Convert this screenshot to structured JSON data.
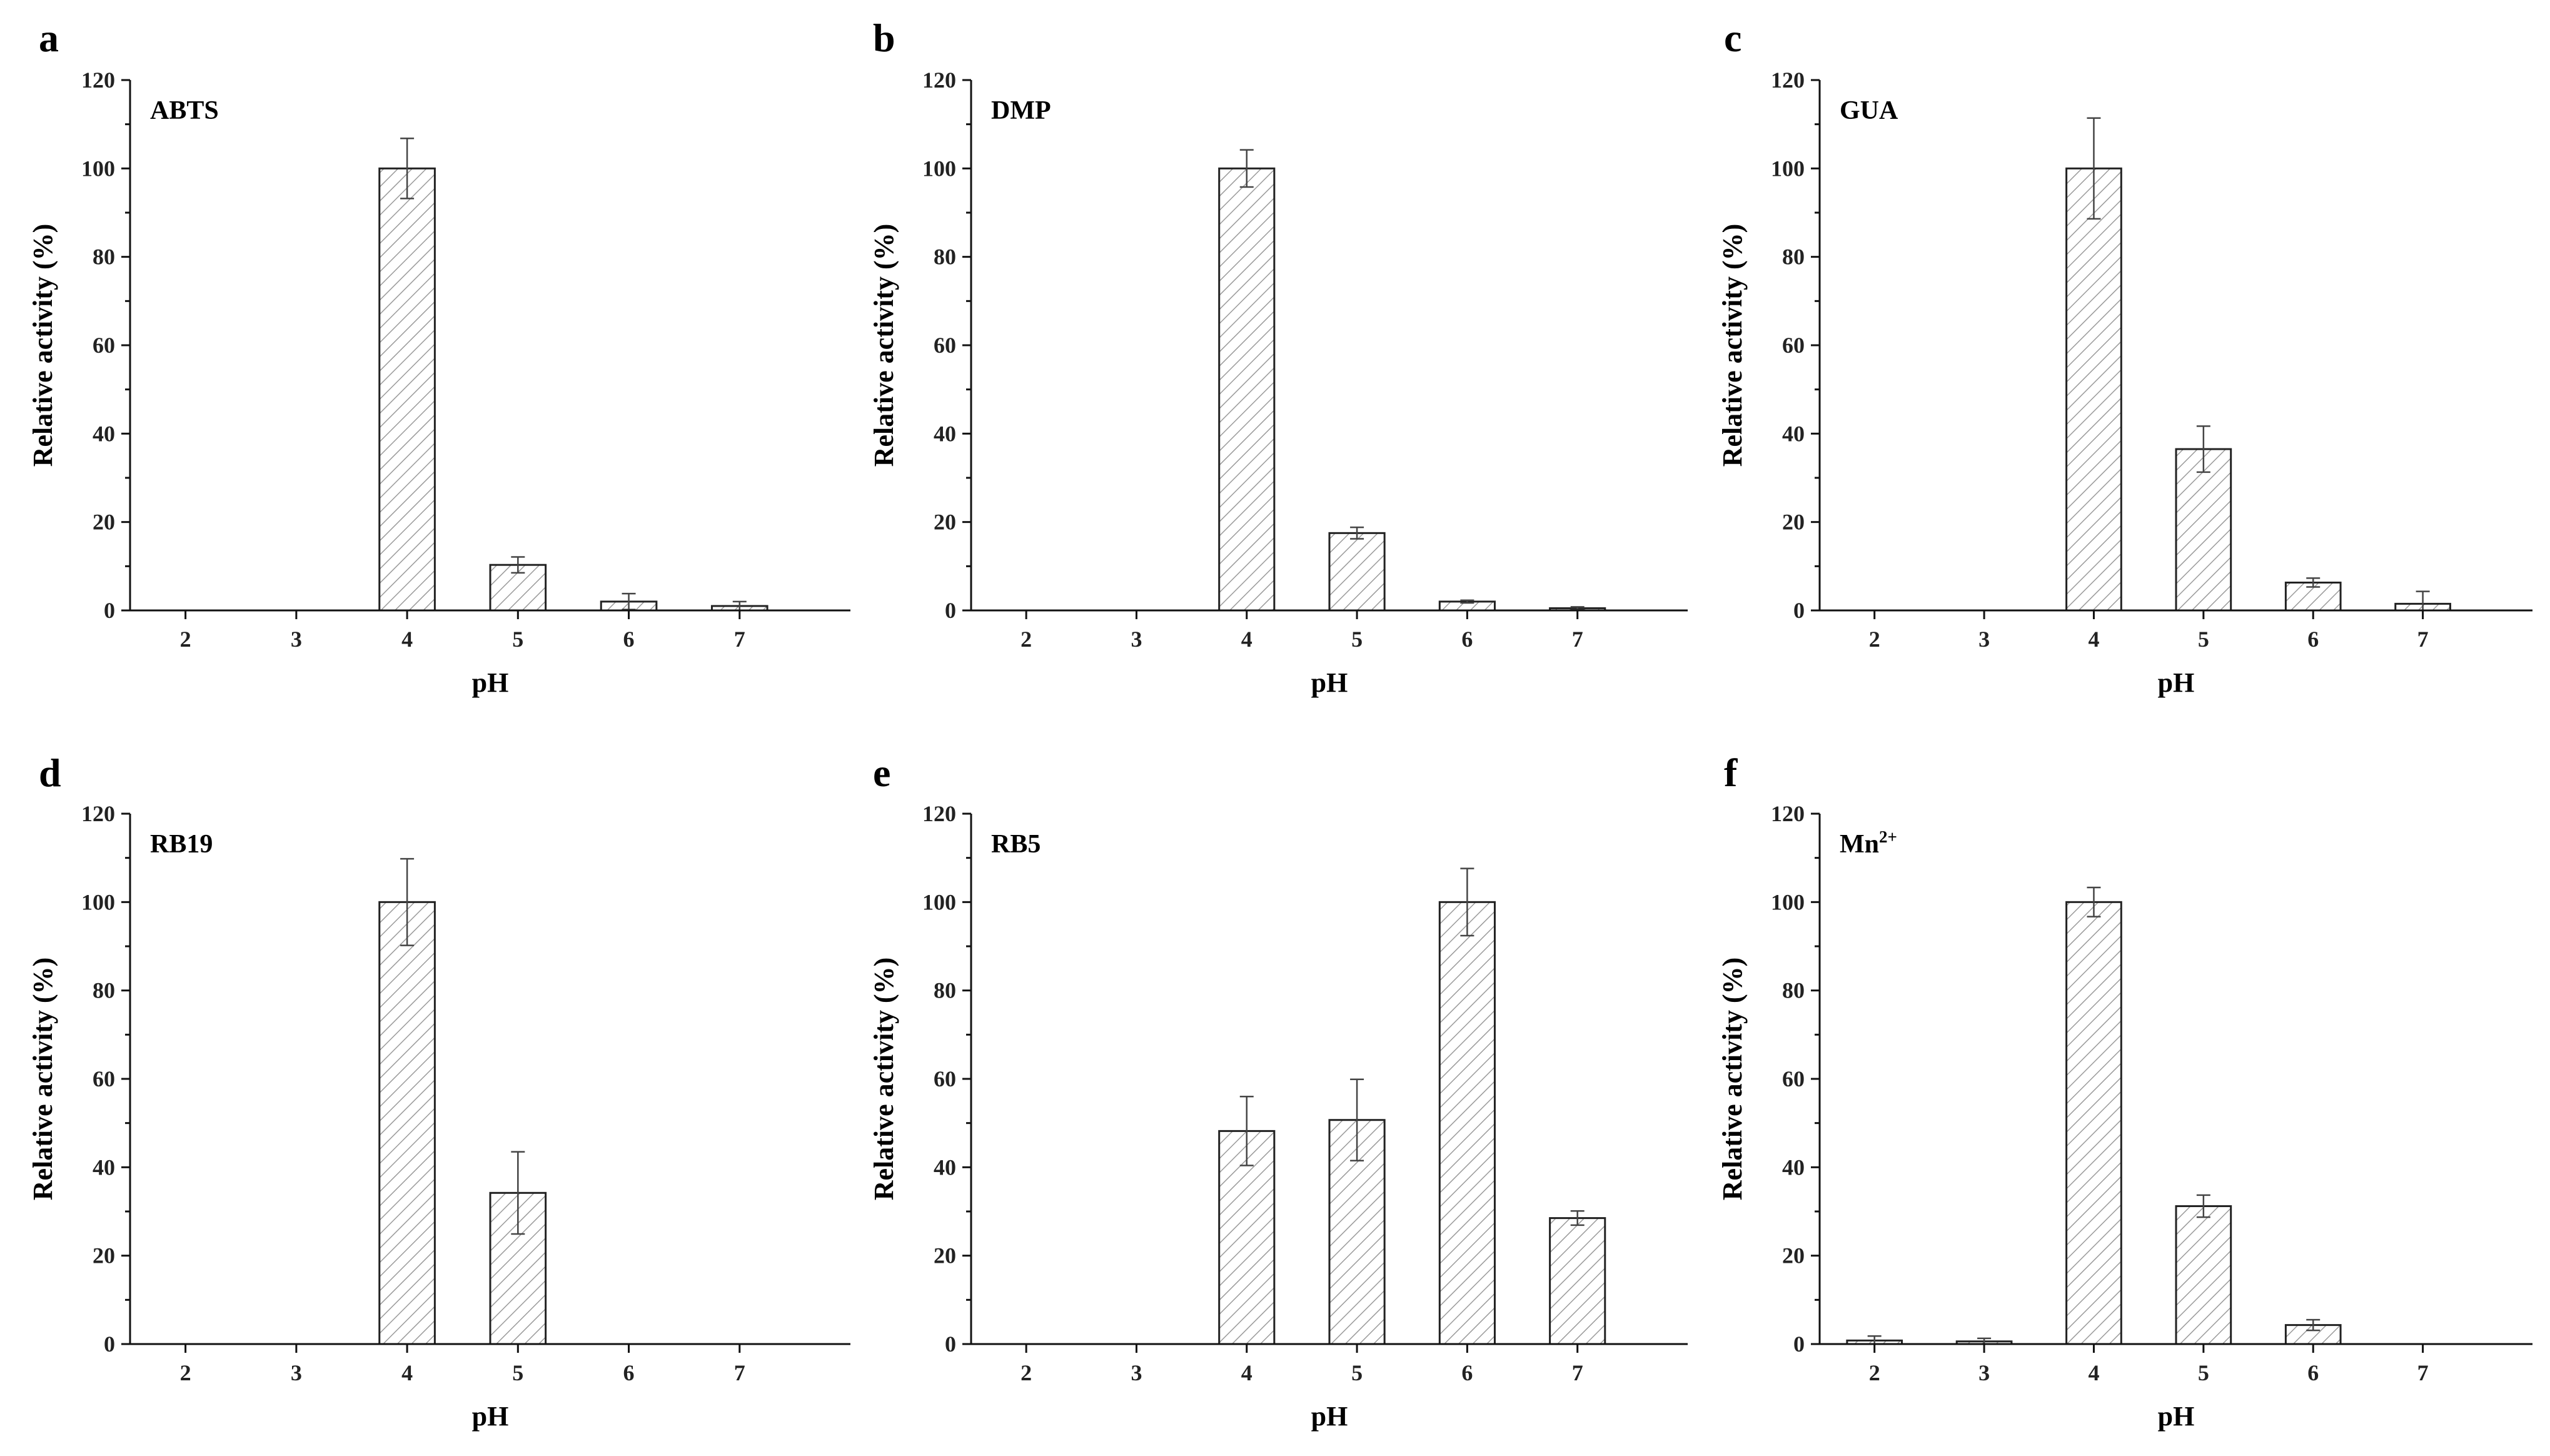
{
  "figure": {
    "xlabel": "pH",
    "ylabel": "Relative activity (%)",
    "hatch_color": "#9a9a9a",
    "bar_fill": "#ffffff"
  },
  "chart_data": [
    {
      "type": "bar",
      "panel": "a",
      "title": "ABTS",
      "categories": [
        "2",
        "3",
        "4",
        "5",
        "6",
        "7"
      ],
      "values": [
        0,
        0,
        100,
        10.3,
        2.0,
        1.0
      ],
      "errors": [
        0,
        0,
        6.8,
        1.8,
        1.8,
        1.0
      ],
      "xlabel": "pH",
      "ylabel": "Relative activity (%)",
      "ylim": [
        0,
        120
      ],
      "yticks": [
        "0",
        "20",
        "40",
        "60",
        "80",
        "100",
        "120"
      ]
    },
    {
      "type": "bar",
      "panel": "b",
      "title": "DMP",
      "categories": [
        "2",
        "3",
        "4",
        "5",
        "6",
        "7"
      ],
      "values": [
        0,
        0,
        100,
        17.5,
        2.0,
        0.5
      ],
      "errors": [
        0,
        0,
        4.2,
        1.3,
        0.3,
        0.3
      ],
      "xlabel": "pH",
      "ylabel": "Relative activity (%)",
      "ylim": [
        0,
        120
      ],
      "yticks": [
        "0",
        "20",
        "40",
        "60",
        "80",
        "100",
        "120"
      ]
    },
    {
      "type": "bar",
      "panel": "c",
      "title": "GUA",
      "categories": [
        "2",
        "3",
        "4",
        "5",
        "6",
        "7"
      ],
      "values": [
        0,
        0,
        100,
        36.5,
        6.3,
        1.5
      ],
      "errors": [
        0,
        0,
        11.4,
        5.2,
        1.0,
        2.8
      ],
      "xlabel": "pH",
      "ylabel": "Relative activity (%)",
      "ylim": [
        0,
        120
      ],
      "yticks": [
        "0",
        "20",
        "40",
        "60",
        "80",
        "100",
        "120"
      ]
    },
    {
      "type": "bar",
      "panel": "d",
      "title": "RB19",
      "categories": [
        "2",
        "3",
        "4",
        "5",
        "6",
        "7"
      ],
      "values": [
        0,
        0,
        100,
        34.2,
        0,
        0
      ],
      "errors": [
        0,
        0,
        9.8,
        9.3,
        0,
        0
      ],
      "xlabel": "pH",
      "ylabel": "Relative activity (%)",
      "ylim": [
        0,
        120
      ],
      "yticks": [
        "0",
        "20",
        "40",
        "60",
        "80",
        "100",
        "120"
      ]
    },
    {
      "type": "bar",
      "panel": "e",
      "title": "RB5",
      "categories": [
        "2",
        "3",
        "4",
        "5",
        "6",
        "7"
      ],
      "values": [
        0,
        0,
        48.2,
        50.7,
        100,
        28.5
      ],
      "errors": [
        0,
        0,
        7.8,
        9.2,
        7.6,
        1.6
      ],
      "xlabel": "pH",
      "ylabel": "Relative activity (%)",
      "ylim": [
        0,
        120
      ],
      "yticks": [
        "0",
        "20",
        "40",
        "60",
        "80",
        "100",
        "120"
      ]
    },
    {
      "type": "bar",
      "panel": "f",
      "title": "Mn",
      "title_sup": "2+",
      "categories": [
        "2",
        "3",
        "4",
        "5",
        "6",
        "7"
      ],
      "values": [
        0.8,
        0.6,
        100,
        31.2,
        4.3,
        0
      ],
      "errors": [
        1.0,
        0.7,
        3.3,
        2.5,
        1.2,
        0
      ],
      "xlabel": "pH",
      "ylabel": "Relative activity (%)",
      "ylim": [
        0,
        120
      ],
      "yticks": [
        "0",
        "20",
        "40",
        "60",
        "80",
        "100",
        "120"
      ]
    }
  ]
}
